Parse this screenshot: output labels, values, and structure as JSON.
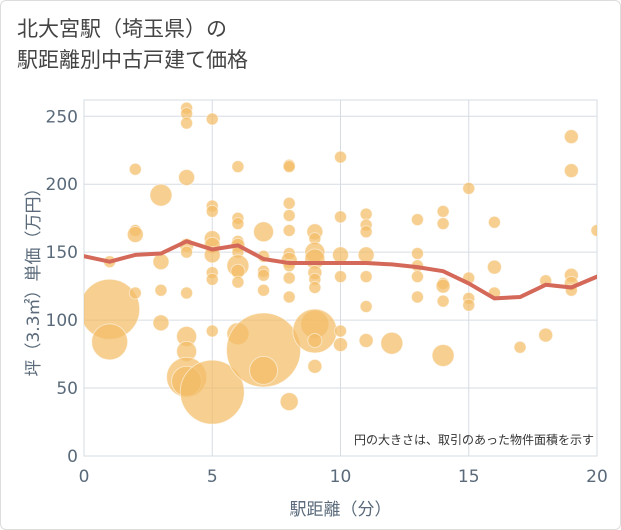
{
  "title": {
    "line1": "北大宮駅（埼玉県）の",
    "line2": "駅距離別中古戸建て価格"
  },
  "note": "円の大きさは、取引のあった物件面積を示す",
  "colors": {
    "bubble": "#f2bd66",
    "line": "#d4695a",
    "grid": "#d7dce3",
    "axis_text": "#5a6a7a"
  },
  "chart_data": {
    "type": "scatter",
    "xlabel": "駅距離（分）",
    "ylabel": "坪（3.3㎡）単価（万円）",
    "xlim": [
      0,
      20
    ],
    "ylim": [
      0,
      262
    ],
    "xticks": [
      0,
      5,
      10,
      15,
      20
    ],
    "yticks": [
      0,
      50,
      100,
      150,
      200,
      250
    ],
    "bubbles": [
      {
        "x": 1,
        "y": 108,
        "r": 30
      },
      {
        "x": 1,
        "y": 84,
        "r": 18
      },
      {
        "x": 1,
        "y": 143,
        "r": 6
      },
      {
        "x": 2,
        "y": 211,
        "r": 6
      },
      {
        "x": 2,
        "y": 166,
        "r": 6
      },
      {
        "x": 2,
        "y": 163,
        "r": 8
      },
      {
        "x": 2,
        "y": 120,
        "r": 6
      },
      {
        "x": 3,
        "y": 192,
        "r": 11
      },
      {
        "x": 3,
        "y": 143,
        "r": 8
      },
      {
        "x": 3,
        "y": 122,
        "r": 6
      },
      {
        "x": 3,
        "y": 98,
        "r": 8
      },
      {
        "x": 4,
        "y": 256,
        "r": 6
      },
      {
        "x": 4,
        "y": 252,
        "r": 6
      },
      {
        "x": 4,
        "y": 245,
        "r": 6
      },
      {
        "x": 4,
        "y": 205,
        "r": 8
      },
      {
        "x": 4,
        "y": 155,
        "r": 7
      },
      {
        "x": 4,
        "y": 150,
        "r": 6
      },
      {
        "x": 4,
        "y": 120,
        "r": 6
      },
      {
        "x": 4,
        "y": 88,
        "r": 10
      },
      {
        "x": 4,
        "y": 77,
        "r": 10
      },
      {
        "x": 4,
        "y": 58,
        "r": 20
      },
      {
        "x": 4,
        "y": 55,
        "r": 15
      },
      {
        "x": 5,
        "y": 248,
        "r": 6
      },
      {
        "x": 5,
        "y": 184,
        "r": 6
      },
      {
        "x": 5,
        "y": 180,
        "r": 6
      },
      {
        "x": 5,
        "y": 160,
        "r": 8
      },
      {
        "x": 5,
        "y": 155,
        "r": 8
      },
      {
        "x": 5,
        "y": 148,
        "r": 8
      },
      {
        "x": 5,
        "y": 135,
        "r": 6
      },
      {
        "x": 5,
        "y": 130,
        "r": 6
      },
      {
        "x": 5,
        "y": 92,
        "r": 6
      },
      {
        "x": 5,
        "y": 47,
        "r": 32
      },
      {
        "x": 6,
        "y": 213,
        "r": 6
      },
      {
        "x": 6,
        "y": 175,
        "r": 6
      },
      {
        "x": 6,
        "y": 171,
        "r": 6
      },
      {
        "x": 6,
        "y": 158,
        "r": 6
      },
      {
        "x": 6,
        "y": 155,
        "r": 7
      },
      {
        "x": 6,
        "y": 150,
        "r": 6
      },
      {
        "x": 6,
        "y": 140,
        "r": 11
      },
      {
        "x": 6,
        "y": 136,
        "r": 7
      },
      {
        "x": 6,
        "y": 128,
        "r": 6
      },
      {
        "x": 6,
        "y": 90,
        "r": 11
      },
      {
        "x": 7,
        "y": 165,
        "r": 10
      },
      {
        "x": 7,
        "y": 147,
        "r": 6
      },
      {
        "x": 7,
        "y": 136,
        "r": 6
      },
      {
        "x": 7,
        "y": 133,
        "r": 6
      },
      {
        "x": 7,
        "y": 122,
        "r": 6
      },
      {
        "x": 7,
        "y": 78,
        "r": 37
      },
      {
        "x": 7,
        "y": 63,
        "r": 14
      },
      {
        "x": 8,
        "y": 214,
        "r": 6
      },
      {
        "x": 8,
        "y": 213,
        "r": 6
      },
      {
        "x": 8,
        "y": 186,
        "r": 6
      },
      {
        "x": 8,
        "y": 177,
        "r": 6
      },
      {
        "x": 8,
        "y": 166,
        "r": 6
      },
      {
        "x": 8,
        "y": 149,
        "r": 6
      },
      {
        "x": 8,
        "y": 144,
        "r": 8
      },
      {
        "x": 8,
        "y": 140,
        "r": 6
      },
      {
        "x": 8,
        "y": 131,
        "r": 6
      },
      {
        "x": 8,
        "y": 117,
        "r": 6
      },
      {
        "x": 8,
        "y": 40,
        "r": 9
      },
      {
        "x": 9,
        "y": 165,
        "r": 8
      },
      {
        "x": 9,
        "y": 160,
        "r": 6
      },
      {
        "x": 9,
        "y": 150,
        "r": 10
      },
      {
        "x": 9,
        "y": 145,
        "r": 10
      },
      {
        "x": 9,
        "y": 135,
        "r": 7
      },
      {
        "x": 9,
        "y": 130,
        "r": 6
      },
      {
        "x": 9,
        "y": 124,
        "r": 6
      },
      {
        "x": 9,
        "y": 97,
        "r": 14
      },
      {
        "x": 9,
        "y": 92,
        "r": 22
      },
      {
        "x": 9,
        "y": 85,
        "r": 7
      },
      {
        "x": 9,
        "y": 66,
        "r": 7
      },
      {
        "x": 10,
        "y": 220,
        "r": 6
      },
      {
        "x": 10,
        "y": 176,
        "r": 6
      },
      {
        "x": 10,
        "y": 148,
        "r": 8
      },
      {
        "x": 10,
        "y": 132,
        "r": 6
      },
      {
        "x": 10,
        "y": 92,
        "r": 6
      },
      {
        "x": 10,
        "y": 82,
        "r": 7
      },
      {
        "x": 11,
        "y": 178,
        "r": 6
      },
      {
        "x": 11,
        "y": 170,
        "r": 6
      },
      {
        "x": 11,
        "y": 165,
        "r": 6
      },
      {
        "x": 11,
        "y": 148,
        "r": 8
      },
      {
        "x": 11,
        "y": 132,
        "r": 6
      },
      {
        "x": 11,
        "y": 110,
        "r": 6
      },
      {
        "x": 11,
        "y": 85,
        "r": 7
      },
      {
        "x": 12,
        "y": 83,
        "r": 11
      },
      {
        "x": 13,
        "y": 174,
        "r": 6
      },
      {
        "x": 13,
        "y": 149,
        "r": 6
      },
      {
        "x": 13,
        "y": 140,
        "r": 6
      },
      {
        "x": 13,
        "y": 132,
        "r": 6
      },
      {
        "x": 13,
        "y": 117,
        "r": 6
      },
      {
        "x": 14,
        "y": 180,
        "r": 6
      },
      {
        "x": 14,
        "y": 171,
        "r": 6
      },
      {
        "x": 14,
        "y": 127,
        "r": 6
      },
      {
        "x": 14,
        "y": 125,
        "r": 7
      },
      {
        "x": 14,
        "y": 114,
        "r": 6
      },
      {
        "x": 14,
        "y": 74,
        "r": 11
      },
      {
        "x": 15,
        "y": 197,
        "r": 6
      },
      {
        "x": 15,
        "y": 131,
        "r": 6
      },
      {
        "x": 15,
        "y": 116,
        "r": 6
      },
      {
        "x": 15,
        "y": 111,
        "r": 6
      },
      {
        "x": 16,
        "y": 172,
        "r": 6
      },
      {
        "x": 16,
        "y": 139,
        "r": 7
      },
      {
        "x": 16,
        "y": 120,
        "r": 6
      },
      {
        "x": 17,
        "y": 80,
        "r": 6
      },
      {
        "x": 18,
        "y": 129,
        "r": 6
      },
      {
        "x": 18,
        "y": 89,
        "r": 7
      },
      {
        "x": 19,
        "y": 235,
        "r": 7
      },
      {
        "x": 19,
        "y": 210,
        "r": 7
      },
      {
        "x": 19,
        "y": 133,
        "r": 7
      },
      {
        "x": 19,
        "y": 127,
        "r": 7
      },
      {
        "x": 19,
        "y": 122,
        "r": 6
      },
      {
        "x": 20,
        "y": 166,
        "r": 6
      }
    ],
    "trend": {
      "x": [
        0,
        1,
        2,
        3,
        4,
        5,
        6,
        7,
        8,
        9,
        10,
        11,
        12,
        13,
        14,
        15,
        16,
        17,
        18,
        19,
        20
      ],
      "y": [
        147,
        143,
        148,
        149,
        158,
        152,
        155,
        145,
        142,
        142,
        142,
        142,
        141,
        139,
        136,
        127,
        116,
        117,
        126,
        124,
        132
      ]
    }
  }
}
